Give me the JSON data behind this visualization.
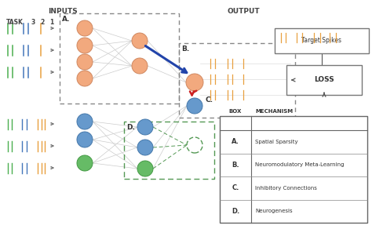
{
  "title_inputs": "INPUTS",
  "title_output": "OUTPUT",
  "task_label": "TASK",
  "task_numbers": [
    "3",
    "2",
    "1"
  ],
  "bg_color": "#f5f5f5",
  "salmon_color": "#F2A97E",
  "blue_color": "#6699CC",
  "green_color": "#66BB66",
  "gray_color": "#999999",
  "box_mechanisms": [
    {
      "box": "A.",
      "mechanism": "Spatial Sparsity"
    },
    {
      "box": "B.",
      "mechanism": "Neuromodulatory Meta-Learning"
    },
    {
      "box": "C.",
      "mechanism": "Inhibitory Connections"
    },
    {
      "box": "D.",
      "mechanism": "Neurogenesis"
    }
  ],
  "green_spike": "#4CAF50",
  "blue_spike": "#4477BB",
  "orange_spike": "#E8A040",
  "dark_blue_arrow": "#2244AA",
  "red_arrow": "#CC2222",
  "dashed_green": "#559955"
}
